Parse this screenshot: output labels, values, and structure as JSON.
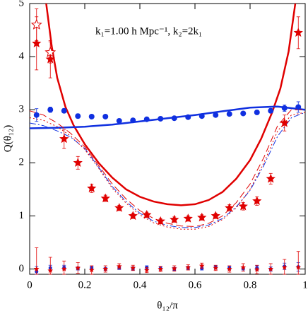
{
  "chart_data": {
    "type": "scatter",
    "annotation": "k₁=1.00 h Mpc⁻¹, k₂=2k₁",
    "x_label": "θ₁₂/π",
    "y_label": "Q(θ₁₂)",
    "xlim": [
      0,
      1
    ],
    "ylim": [
      -0.1,
      5
    ],
    "xticks": [
      0,
      0.2,
      0.4,
      0.6,
      0.8,
      1
    ],
    "yticks": [
      0,
      1,
      2,
      3,
      4,
      5
    ],
    "lines": [
      {
        "color": "#e00000",
        "style": "solid",
        "width": 2.5,
        "x": [
          0.06,
          0.08,
          0.1,
          0.13,
          0.16,
          0.2,
          0.25,
          0.3,
          0.35,
          0.4,
          0.45,
          0.5,
          0.55,
          0.6,
          0.65,
          0.7,
          0.75,
          0.8,
          0.84,
          0.88,
          0.91,
          0.94,
          0.964
        ],
        "values": [
          5,
          4.2,
          3.6,
          3.05,
          2.7,
          2.35,
          2.0,
          1.72,
          1.5,
          1.36,
          1.27,
          1.22,
          1.2,
          1.22,
          1.3,
          1.45,
          1.7,
          2.05,
          2.45,
          2.95,
          3.4,
          4.1,
          5
        ]
      },
      {
        "color": "#1030e0",
        "style": "solid",
        "width": 2.5,
        "x": [
          0,
          0.1,
          0.2,
          0.3,
          0.4,
          0.5,
          0.6,
          0.7,
          0.8,
          0.9,
          1
        ],
        "values": [
          2.65,
          2.66,
          2.68,
          2.72,
          2.78,
          2.84,
          2.9,
          2.97,
          3.04,
          3.06,
          3.0
        ]
      },
      {
        "color": "#e00000",
        "style": "dashed",
        "width": 1,
        "x": [
          0,
          0.05,
          0.1,
          0.15,
          0.2,
          0.25,
          0.3,
          0.35,
          0.4,
          0.45,
          0.5,
          0.55,
          0.6,
          0.65,
          0.7,
          0.75,
          0.8,
          0.85,
          0.9,
          0.95,
          1
        ],
        "values": [
          2.98,
          2.9,
          2.75,
          2.55,
          2.3,
          1.95,
          1.6,
          1.32,
          1.1,
          0.95,
          0.86,
          0.81,
          0.8,
          0.86,
          1.0,
          1.25,
          1.6,
          2.1,
          2.7,
          3.0,
          3.0
        ]
      },
      {
        "color": "#1030e0",
        "style": "dashdot",
        "width": 1,
        "x": [
          0,
          0.05,
          0.1,
          0.15,
          0.2,
          0.25,
          0.3,
          0.35,
          0.4,
          0.45,
          0.5,
          0.55,
          0.6,
          0.65,
          0.7,
          0.75,
          0.8,
          0.85,
          0.9,
          0.95,
          1
        ],
        "values": [
          2.75,
          2.7,
          2.6,
          2.48,
          2.27,
          1.92,
          1.55,
          1.27,
          1.05,
          0.9,
          0.82,
          0.78,
          0.78,
          0.83,
          0.95,
          1.17,
          1.48,
          1.95,
          2.5,
          2.85,
          2.95
        ]
      },
      {
        "color": "#e00000",
        "style": "dotted",
        "width": 1,
        "x": [
          0,
          0.05,
          0.1,
          0.15,
          0.2,
          0.25,
          0.3,
          0.35,
          0.4,
          0.45,
          0.5,
          0.55,
          0.6,
          0.65,
          0.7,
          0.75,
          0.8,
          0.85,
          0.9,
          0.95,
          1
        ],
        "values": [
          2.85,
          2.8,
          2.68,
          2.5,
          2.25,
          1.9,
          1.52,
          1.24,
          1.02,
          0.87,
          0.79,
          0.75,
          0.75,
          0.8,
          0.93,
          1.15,
          1.5,
          2.0,
          2.6,
          2.9,
          2.95
        ]
      }
    ],
    "points": [
      {
        "color": "#1030e0",
        "marker": "circle",
        "x": [
          0.025,
          0.075,
          0.125,
          0.175,
          0.225,
          0.275,
          0.325,
          0.375,
          0.425,
          0.475,
          0.525,
          0.575,
          0.625,
          0.675,
          0.725,
          0.775,
          0.825,
          0.875,
          0.925,
          0.975
        ],
        "values": [
          2.9,
          3.0,
          2.98,
          2.88,
          2.87,
          2.87,
          2.79,
          2.8,
          2.82,
          2.83,
          2.84,
          2.86,
          2.88,
          2.9,
          2.92,
          2.93,
          2.95,
          2.98,
          3.03,
          3.05
        ],
        "errors": [
          0.12,
          0.05,
          0.04,
          0.04,
          0.04,
          0.03,
          0.03,
          0.03,
          0.03,
          0.03,
          0.03,
          0.03,
          0.03,
          0.03,
          0.03,
          0.03,
          0.04,
          0.04,
          0.06,
          0.1
        ]
      },
      {
        "color": "#e00000",
        "marker": "star",
        "x": [
          0.025,
          0.075,
          0.125,
          0.175,
          0.225,
          0.275,
          0.325,
          0.375,
          0.425,
          0.475,
          0.525,
          0.575,
          0.625,
          0.675,
          0.725,
          0.775,
          0.825,
          0.875,
          0.925,
          0.975
        ],
        "values": [
          4.25,
          3.95,
          2.45,
          2.0,
          1.52,
          1.33,
          1.15,
          1.0,
          1.02,
          0.9,
          0.93,
          0.95,
          0.97,
          1.0,
          1.15,
          1.18,
          1.28,
          1.7,
          2.75,
          4.45
        ],
        "errors": [
          0.5,
          0.35,
          0.18,
          0.12,
          0.08,
          0.06,
          0.05,
          0.05,
          0.05,
          0.05,
          0.05,
          0.05,
          0.05,
          0.05,
          0.06,
          0.07,
          0.08,
          0.1,
          0.15,
          0.3
        ]
      },
      {
        "color": "#e00000",
        "marker": "open-star",
        "x": [
          0.025,
          0.075
        ],
        "values": [
          4.6,
          4.08
        ],
        "errors": [
          0.3,
          0.2
        ]
      },
      {
        "color": "#1030e0",
        "marker": "small-circle",
        "x": [
          0.025,
          0.075,
          0.125,
          0.175,
          0.225,
          0.275,
          0.325,
          0.375,
          0.425,
          0.475,
          0.525,
          0.575,
          0.625,
          0.675,
          0.725,
          0.775,
          0.825,
          0.875,
          0.925,
          0.975
        ],
        "values": [
          -0.05,
          0.02,
          0.03,
          0.01,
          0.02,
          0.0,
          0.02,
          0.01,
          0.03,
          0.01,
          0.0,
          0.02,
          0.01,
          0.03,
          0.02,
          0.01,
          0.02,
          0.0,
          0.05,
          0.04
        ],
        "errors": [
          0.1,
          0.05,
          0.04,
          0.03,
          0.03,
          0.03,
          0.03,
          0.03,
          0.03,
          0.03,
          0.03,
          0.03,
          0.03,
          0.03,
          0.03,
          0.03,
          0.04,
          0.04,
          0.06,
          0.08
        ]
      },
      {
        "color": "#e00000",
        "marker": "small-star",
        "x": [
          0.025,
          0.075,
          0.125,
          0.175,
          0.225,
          0.275,
          0.325,
          0.375,
          0.425,
          0.475,
          0.525,
          0.575,
          0.625,
          0.675,
          0.725,
          0.775,
          0.825,
          0.875,
          0.925,
          0.975
        ],
        "values": [
          0.0,
          -0.03,
          0.0,
          0.02,
          -0.02,
          0.0,
          0.05,
          0.02,
          -0.02,
          0.0,
          0.01,
          0.03,
          0.06,
          0.02,
          0.0,
          0.03,
          -0.01,
          0.0,
          0.03,
          0.03
        ],
        "errors": [
          0.4,
          0.25,
          0.15,
          0.1,
          0.08,
          0.06,
          0.05,
          0.05,
          0.05,
          0.05,
          0.05,
          0.05,
          0.05,
          0.05,
          0.06,
          0.07,
          0.08,
          0.1,
          0.15,
          0.3
        ]
      }
    ]
  }
}
